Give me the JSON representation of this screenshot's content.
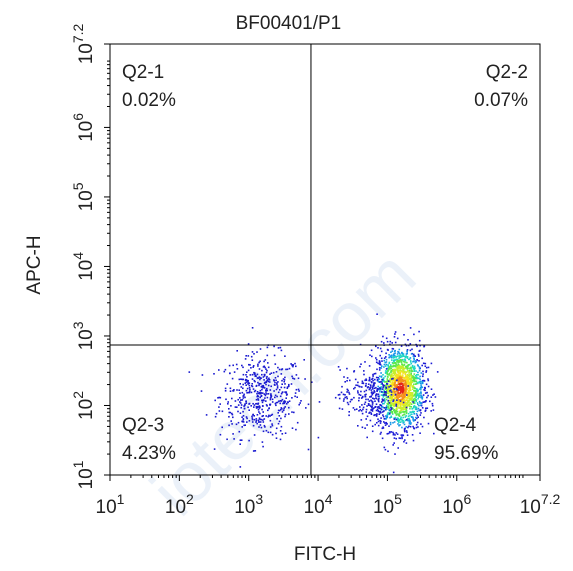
{
  "chart_data": {
    "type": "scatter",
    "title": {
      "sample": "BF00401/ ",
      "gate": "P1",
      "gate_color": "#22c33a"
    },
    "xlabel": "FITC-H",
    "ylabel": "APC-H",
    "xscale": "log",
    "yscale": "log",
    "xlim": [
      10,
      15848932
    ],
    "ylim": [
      10,
      15848932
    ],
    "x_ticks": [
      {
        "value": 10,
        "base": "10",
        "exp": "1"
      },
      {
        "value": 100,
        "base": "10",
        "exp": "2"
      },
      {
        "value": 1000,
        "base": "10",
        "exp": "3"
      },
      {
        "value": 10000,
        "base": "10",
        "exp": "4"
      },
      {
        "value": 100000,
        "base": "10",
        "exp": "5"
      },
      {
        "value": 1000000,
        "base": "10",
        "exp": "6"
      },
      {
        "value": 15848932,
        "base": "10",
        "exp": "7.2"
      }
    ],
    "y_ticks": [
      {
        "value": 10,
        "base": "10",
        "exp": "1"
      },
      {
        "value": 100,
        "base": "10",
        "exp": "2"
      },
      {
        "value": 1000,
        "base": "10",
        "exp": "3"
      },
      {
        "value": 10000,
        "base": "10",
        "exp": "4"
      },
      {
        "value": 100000,
        "base": "10",
        "exp": "5"
      },
      {
        "value": 1000000,
        "base": "10",
        "exp": "6"
      },
      {
        "value": 15848932,
        "base": "10",
        "exp": "7.2"
      }
    ],
    "gate_divider": {
      "x": 7900,
      "y": 740
    },
    "quadrants": [
      {
        "name": "Q2-1",
        "percent": "0.02%",
        "position": "top-left"
      },
      {
        "name": "Q2-2",
        "percent": "0.07%",
        "position": "top-right"
      },
      {
        "name": "Q2-3",
        "percent": "4.23%",
        "position": "bottom-left"
      },
      {
        "name": "Q2-4",
        "percent": "95.69%",
        "position": "bottom-right"
      }
    ],
    "clusters": [
      {
        "label": "Q2-3 population",
        "x_center": 1500,
        "y_center": 140,
        "x_spread_decades": 0.3,
        "y_spread_decades": 0.3,
        "count": 520,
        "density_colors": false
      },
      {
        "label": "Q2-4 main population",
        "x_center": 150000,
        "y_center": 180,
        "x_spread_decades": 0.17,
        "y_spread_decades": 0.3,
        "count": 1600,
        "density_colors": true
      },
      {
        "label": "Q2-4 shoulder",
        "x_center": 55000,
        "y_center": 140,
        "x_spread_decades": 0.22,
        "y_spread_decades": 0.2,
        "count": 260,
        "density_colors": false
      }
    ],
    "density_palette": [
      "#1b1bd6",
      "#1597e8",
      "#1fd6c2",
      "#5be84a",
      "#c8ee2a",
      "#f4e21c",
      "#f6911a",
      "#e3231a"
    ],
    "divider_color": "#000000",
    "point_color": "#1a1ad0",
    "grid": false
  }
}
